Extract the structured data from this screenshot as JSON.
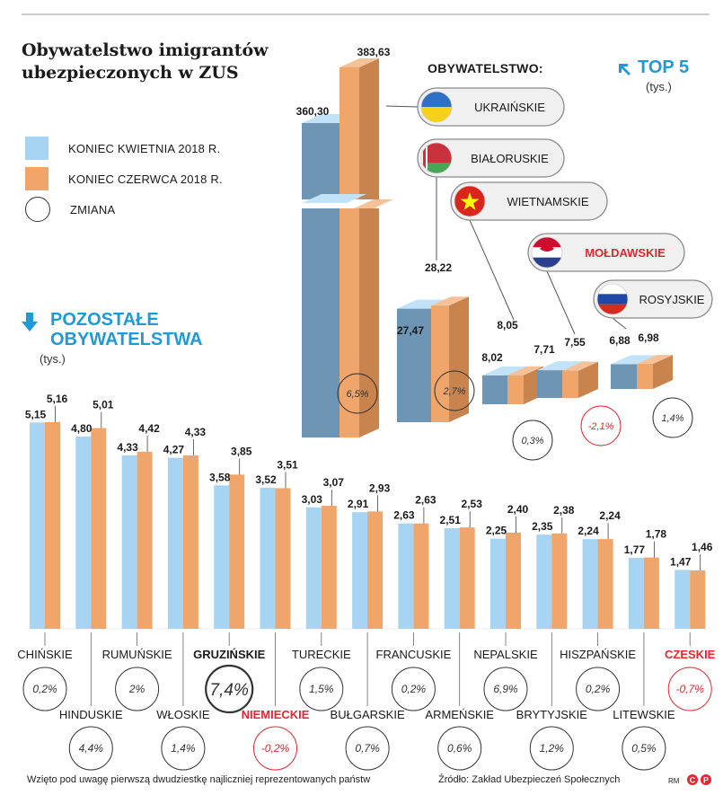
{
  "title": "Obywatelstwo imigrantów ubezpieczonych w ZUS",
  "legend": [
    {
      "label": "KONIEC KWIETNIA 2018 R.",
      "color": "#a6d4f2"
    },
    {
      "label": "KONIEC CZERWCA 2018 R.",
      "color": "#f0a56a"
    },
    {
      "label": "ZMIANA"
    }
  ],
  "top5_heading": "TOP 5",
  "top5_unit": "(tys.)",
  "citizenship_heading": "OBYWATELSTWO:",
  "others_heading_line1": "POZOSTAŁE",
  "others_heading_line2": "OBYWATELSTWA",
  "others_unit": "(tys.)",
  "footnote": "Wzięto pod uwagę pierwszą dwudziestkę najliczniej reprezentowanych państw",
  "source": "Źródło: Zakład Ubezpieczeń Społecznych",
  "credit": "RM",
  "credit_badge": "CP",
  "colors": {
    "april": "#a6d4f2",
    "june": "#f0a56a",
    "accent": "#1f9ad6",
    "negative": "#e2272f",
    "april_side": "#6e96b4",
    "june_side": "#c9834c"
  },
  "chart_data": [
    {
      "type": "bar",
      "title": "TOP 5",
      "unit": "tys.",
      "categories": [
        "UKRAIŃSKIE",
        "BIAŁORUSKIE",
        "WIETNAMSKIE",
        "MOŁDAWSKIE",
        "ROSYJSKIE"
      ],
      "series": [
        {
          "name": "KONIEC KWIETNIA 2018 R.",
          "values": [
            360.3,
            27.47,
            8.02,
            7.71,
            6.88
          ],
          "labels": [
            "360,30",
            "27,47",
            "8,02",
            "7,71",
            "6,88"
          ]
        },
        {
          "name": "KONIEC CZERWCA 2018 R.",
          "values": [
            383.63,
            28.22,
            8.05,
            7.55,
            6.98
          ],
          "labels": [
            "383,63",
            "28,22",
            "8,05",
            "7,55",
            "6,98"
          ]
        }
      ],
      "change": [
        "6,5%",
        "2,7%",
        "0,3%",
        "-2,1%",
        "1,4%"
      ],
      "negative": [
        false,
        false,
        false,
        true,
        false
      ],
      "flags": [
        "ukraine-flag-icon",
        "belarus-flag-icon",
        "vietnam-flag-icon",
        "moldova-flag-icon",
        "russia-flag-icon"
      ]
    },
    {
      "type": "bar",
      "title": "POZOSTAŁE OBYWATELSTWA",
      "unit": "tys.",
      "ylim": [
        0,
        5.5
      ],
      "categories": [
        "CHIŃSKIE",
        "HINDUSKIE",
        "RUMUŃSKIE",
        "WŁOSKIE",
        "GRUZIŃSKIE",
        "NIEMIECKIE",
        "TURECKIE",
        "BUŁGARSKIE",
        "FRANCUSKIE",
        "ARMEŃSKIE",
        "NEPALSKIE",
        "BRYTYJSKIE",
        "HISZPAŃSKIE",
        "LITEWSKIE",
        "CZESKIE"
      ],
      "series": [
        {
          "name": "KONIEC KWIETNIA 2018 R.",
          "values": [
            5.15,
            4.8,
            4.33,
            4.27,
            3.58,
            3.52,
            3.03,
            2.91,
            2.63,
            2.51,
            2.25,
            2.35,
            2.24,
            1.77,
            1.47
          ],
          "labels": [
            "5,15",
            "4,80",
            "4,33",
            "4,27",
            "3,58",
            "3,52",
            "3,03",
            "2,91",
            "2,63",
            "2,51",
            "2,25",
            "2,35",
            "2,24",
            "1,77",
            "1,47"
          ]
        },
        {
          "name": "KONIEC CZERWCA 2018 R.",
          "values": [
            5.16,
            5.01,
            4.42,
            4.33,
            3.85,
            3.51,
            3.07,
            2.93,
            2.63,
            2.53,
            2.4,
            2.38,
            2.24,
            1.78,
            1.46
          ],
          "labels": [
            "5,16",
            "5,01",
            "4,42",
            "4,33",
            "3,85",
            "3,51",
            "3,07",
            "2,93",
            "2,63",
            "2,53",
            "2,40",
            "2,38",
            "2,24",
            "1,78",
            "1,46"
          ]
        }
      ],
      "change": [
        "0,2%",
        "4,4%",
        "2%",
        "1,4%",
        "7,4%",
        "-0,2%",
        "1,5%",
        "0,7%",
        "0,2%",
        "0,6%",
        "6,9%",
        "1,2%",
        "0,2%",
        "0,5%",
        "-0,7%"
      ],
      "highlight": [
        false,
        false,
        false,
        false,
        true,
        false,
        false,
        false,
        false,
        false,
        false,
        false,
        false,
        false,
        false
      ],
      "negative": [
        false,
        false,
        false,
        false,
        false,
        true,
        false,
        false,
        false,
        false,
        false,
        false,
        false,
        false,
        true
      ]
    }
  ]
}
